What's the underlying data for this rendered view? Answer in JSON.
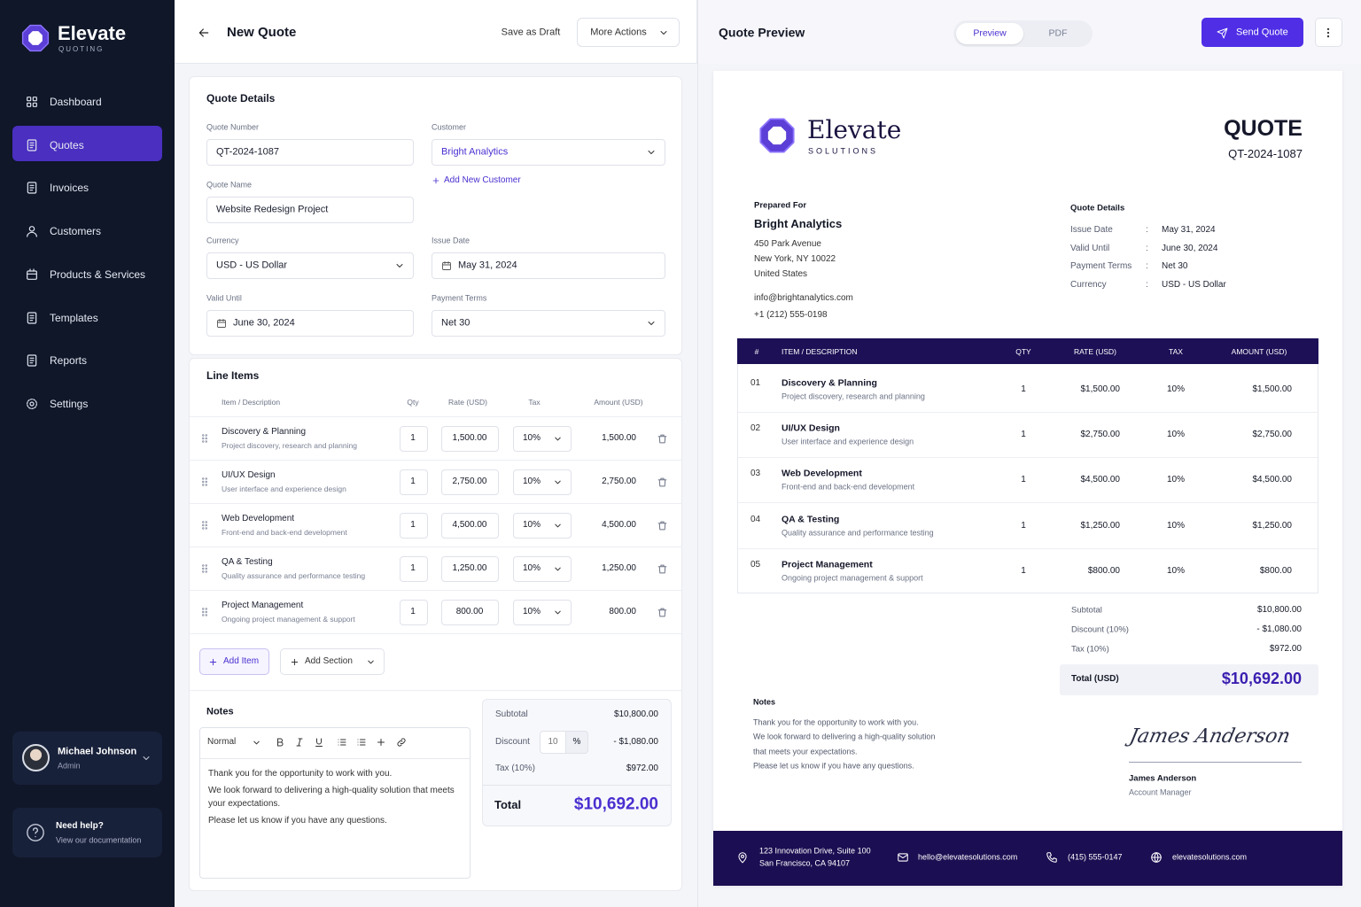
{
  "sidebar": {
    "brand": "Elevate",
    "tagline": "QUOTING",
    "nav": [
      "Dashboard",
      "Quotes",
      "Invoices",
      "Customers",
      "Products & Services",
      "Templates",
      "Reports",
      "Settings"
    ],
    "user": {
      "name": "Michael Johnson",
      "role": "Admin"
    },
    "help": {
      "title": "Need help?",
      "subtitle": "View our documentation"
    }
  },
  "editor": {
    "title": "New Quote",
    "save_draft": "Save as Draft",
    "more_actions": "More Actions",
    "details": {
      "title": "Quote Details",
      "fields": [
        {
          "label": "Quote Number",
          "value": "QT-2024-1087"
        },
        {
          "label": "Customer",
          "value": "Bright Analytics"
        },
        {
          "label": "Quote Name",
          "value": "Website Redesign Project"
        },
        {
          "label": "Currency",
          "value": "USD - US Dollar"
        },
        {
          "label": "Issue Date",
          "value": "May 31, 2024"
        },
        {
          "label": "Valid Until",
          "value": "June 30, 2024"
        },
        {
          "label": "Payment Terms",
          "value": "Net 30"
        }
      ],
      "add_customer": "Add New Customer"
    },
    "line_items": {
      "title": "Line Items",
      "columns": [
        "Item / Description",
        "Qty",
        "Rate (USD)",
        "Tax",
        "Amount (USD)"
      ],
      "rows": [
        {
          "name": "Discovery & Planning",
          "description": "Project discovery, research and planning",
          "qty": "1",
          "rate": "1,500.00",
          "tax": "10%",
          "amount": "1,500.00"
        },
        {
          "name": "UI/UX Design",
          "description": "User interface and experience design",
          "qty": "1",
          "rate": "2,750.00",
          "tax": "10%",
          "amount": "2,750.00"
        },
        {
          "name": "Web Development",
          "description": "Front-end and back-end development",
          "qty": "1",
          "rate": "4,500.00",
          "tax": "10%",
          "amount": "4,500.00"
        },
        {
          "name": "QA & Testing",
          "description": "Quality assurance and performance testing",
          "qty": "1",
          "rate": "1,250.00",
          "tax": "10%",
          "amount": "1,250.00"
        },
        {
          "name": "Project Management",
          "description": "Ongoing project management & support",
          "qty": "1",
          "rate": "800.00",
          "tax": "10%",
          "amount": "800.00"
        }
      ],
      "add_item": "Add Item",
      "add_section": "Add Section"
    },
    "notes": {
      "title": "Notes",
      "style": "Normal",
      "paragraphs": [
        "Thank you for the opportunity to work with you.",
        "We look forward to delivering a high-quality solution that meets your expectations.",
        "Please let us know if you have any questions."
      ]
    },
    "summary": {
      "subtotal_label": "Subtotal",
      "subtotal": "$10,800.00",
      "discount_label": "Discount",
      "discount_rate": "10",
      "discount_unit": "%",
      "discount": "- $1,080.00",
      "tax_label": "Tax (10%)",
      "tax": "$972.00",
      "total_label": "Total",
      "total": "$10,692.00"
    }
  },
  "preview": {
    "title": "Quote Preview",
    "tabs": [
      "Preview",
      "PDF"
    ],
    "send": "Send Quote",
    "document": {
      "brand": "Elevate",
      "tagline": "SOLUTIONS",
      "heading": "QUOTE",
      "number": "QT-2024-1087",
      "prepared_label": "Prepared For",
      "client": "Bright Analytics",
      "address": [
        "450 Park Avenue",
        "New York, NY 10022",
        "United States"
      ],
      "email": "info@brightanalytics.com",
      "phone": "+1 (212) 555-0198",
      "details_title": "Quote Details",
      "separator": ":",
      "details": [
        {
          "label": "Issue Date",
          "value": "May 31, 2024"
        },
        {
          "label": "Valid Until",
          "value": "June 30, 2024"
        },
        {
          "label": "Payment Terms",
          "value": "Net 30"
        },
        {
          "label": "Currency",
          "value": "USD - US Dollar"
        }
      ],
      "columns": [
        "#",
        "ITEM / DESCRIPTION",
        "QTY",
        "RATE (USD)",
        "TAX",
        "AMOUNT (USD)"
      ],
      "rows": [
        {
          "num": "01",
          "name": "Discovery & Planning",
          "description": "Project discovery, research and planning",
          "qty": "1",
          "rate": "$1,500.00",
          "tax": "10%",
          "amount": "$1,500.00"
        },
        {
          "num": "02",
          "name": "UI/UX Design",
          "description": "User interface and experience design",
          "qty": "1",
          "rate": "$2,750.00",
          "tax": "10%",
          "amount": "$2,750.00"
        },
        {
          "num": "03",
          "name": "Web Development",
          "description": "Front-end and back-end development",
          "qty": "1",
          "rate": "$4,500.00",
          "tax": "10%",
          "amount": "$4,500.00"
        },
        {
          "num": "04",
          "name": "QA & Testing",
          "description": "Quality assurance and performance testing",
          "qty": "1",
          "rate": "$1,250.00",
          "tax": "10%",
          "amount": "$1,250.00"
        },
        {
          "num": "05",
          "name": "Project Management",
          "description": "Ongoing project management & support",
          "qty": "1",
          "rate": "$800.00",
          "tax": "10%",
          "amount": "$800.00"
        }
      ],
      "totals": [
        {
          "label": "Subtotal",
          "value": "$10,800.00"
        },
        {
          "label": "Discount (10%)",
          "value": "- $1,080.00"
        },
        {
          "label": "Tax (10%)",
          "value": "$972.00"
        }
      ],
      "total": {
        "label": "Total (USD)",
        "value": "$10,692.00"
      },
      "notes_title": "Notes",
      "notes": [
        "Thank you for the opportunity to work with you.",
        "We look forward to delivering a high-quality solution",
        "that meets your expectations.",
        "Please let us know if you have any questions."
      ],
      "signature": "James Anderson",
      "signer": "James Anderson",
      "signer_role": "Account Manager",
      "footer": {
        "address": [
          "123 Innovation Drive, Suite 100",
          "San Francisco, CA 94107"
        ],
        "email": "hello@elevatesolutions.com",
        "phone": "(415) 555-0147",
        "website": "elevatesolutions.com"
      }
    }
  }
}
